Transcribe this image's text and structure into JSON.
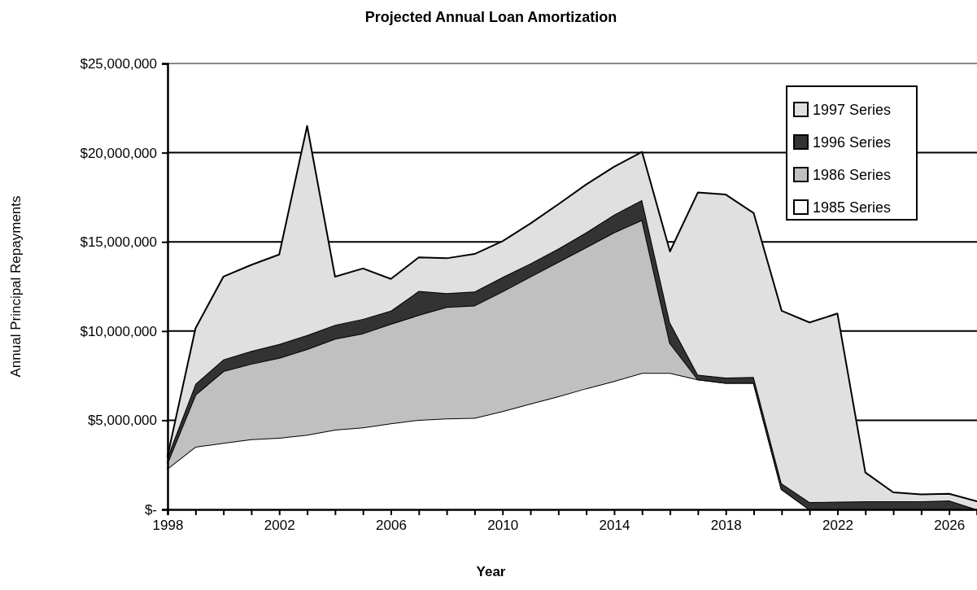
{
  "chart_data": {
    "type": "area",
    "title": "Projected Annual Loan Amortization",
    "xlabel": "Year",
    "ylabel": "Annual Principal Repayments",
    "stacked": true,
    "legend": "top right",
    "grid": "y",
    "x": [
      1998,
      1999,
      2000,
      2001,
      2002,
      2003,
      2004,
      2005,
      2006,
      2007,
      2008,
      2009,
      2010,
      2011,
      2012,
      2013,
      2014,
      2015,
      2016,
      2017,
      2018,
      2019,
      2020,
      2021,
      2022,
      2023,
      2024,
      2025,
      2026,
      2027
    ],
    "xlim": [
      1998,
      2027
    ],
    "xticks": [
      1998,
      {
        "value": 1999,
        "label": null
      },
      {
        "value": 2000,
        "label": null
      },
      {
        "value": 2001,
        "label": null
      },
      2002,
      {
        "value": 2003,
        "label": null
      },
      {
        "value": 2004,
        "label": null
      },
      {
        "value": 2005,
        "label": null
      },
      2006,
      {
        "value": 2007,
        "label": null
      },
      {
        "value": 2008,
        "label": null
      },
      {
        "value": 2009,
        "label": null
      },
      2010,
      {
        "value": 2011,
        "label": null
      },
      {
        "value": 2012,
        "label": null
      },
      {
        "value": 2013,
        "label": null
      },
      2014,
      {
        "value": 2015,
        "label": null
      },
      {
        "value": 2016,
        "label": null
      },
      {
        "value": 2017,
        "label": null
      },
      2018,
      {
        "value": 2019,
        "label": null
      },
      {
        "value": 2020,
        "label": null
      },
      {
        "value": 2021,
        "label": null
      },
      2022,
      {
        "value": 2023,
        "label": null
      },
      {
        "value": 2024,
        "label": null
      },
      {
        "value": 2025,
        "label": null
      },
      2026,
      {
        "value": 2027,
        "label": null
      }
    ],
    "ylim": [
      0,
      25000000
    ],
    "yticks": [
      {
        "value": 0,
        "label": "$-"
      },
      {
        "value": 5000000,
        "label": "$5,000,000"
      },
      {
        "value": 10000000,
        "label": "$10,000,000"
      },
      {
        "value": 15000000,
        "label": "$15,000,000"
      },
      {
        "value": 20000000,
        "label": "$20,000,000"
      },
      {
        "value": 25000000,
        "label": "$25,000,000"
      }
    ],
    "series": [
      {
        "name": "1985 Series",
        "color": "#ffffff",
        "values": [
          2290000,
          3510000,
          3730000,
          3940000,
          4020000,
          4190000,
          4470000,
          4600000,
          4820000,
          5020000,
          5100000,
          5130000,
          5510000,
          5930000,
          6340000,
          6790000,
          7200000,
          7650000,
          7650000,
          7290000,
          7090000,
          7090000,
          1130000,
          0,
          0,
          0,
          0,
          0,
          0,
          0
        ]
      },
      {
        "name": "1986 Series",
        "color": "#c0c0c0",
        "values": [
          330000,
          2920000,
          4020000,
          4220000,
          4480000,
          4800000,
          5100000,
          5270000,
          5580000,
          5880000,
          6250000,
          6300000,
          6710000,
          7120000,
          7540000,
          7910000,
          8330000,
          8580000,
          1670000,
          0,
          0,
          0,
          0,
          0,
          0,
          0,
          0,
          0,
          0,
          0
        ]
      },
      {
        "name": "1996 Series",
        "color": "#333333",
        "values": [
          330000,
          610000,
          660000,
          720000,
          770000,
          780000,
          780000,
          810000,
          740000,
          1350000,
          770000,
          790000,
          800000,
          740000,
          740000,
          830000,
          1000000,
          1120000,
          1160000,
          260000,
          300000,
          330000,
          330000,
          410000,
          430000,
          460000,
          460000,
          460000,
          500000,
          0
        ]
      },
      {
        "name": "1997 Series",
        "color": "#e0e0e0",
        "values": [
          50000,
          3110000,
          4640000,
          4830000,
          5020000,
          11730000,
          2700000,
          2830000,
          1780000,
          1880000,
          1960000,
          2100000,
          2020000,
          2240000,
          2490000,
          2690000,
          2680000,
          2690000,
          3980000,
          10220000,
          10260000,
          9190000,
          9680000,
          10070000,
          10550000,
          1610000,
          500000,
          380000,
          380000,
          460000
        ]
      }
    ]
  }
}
